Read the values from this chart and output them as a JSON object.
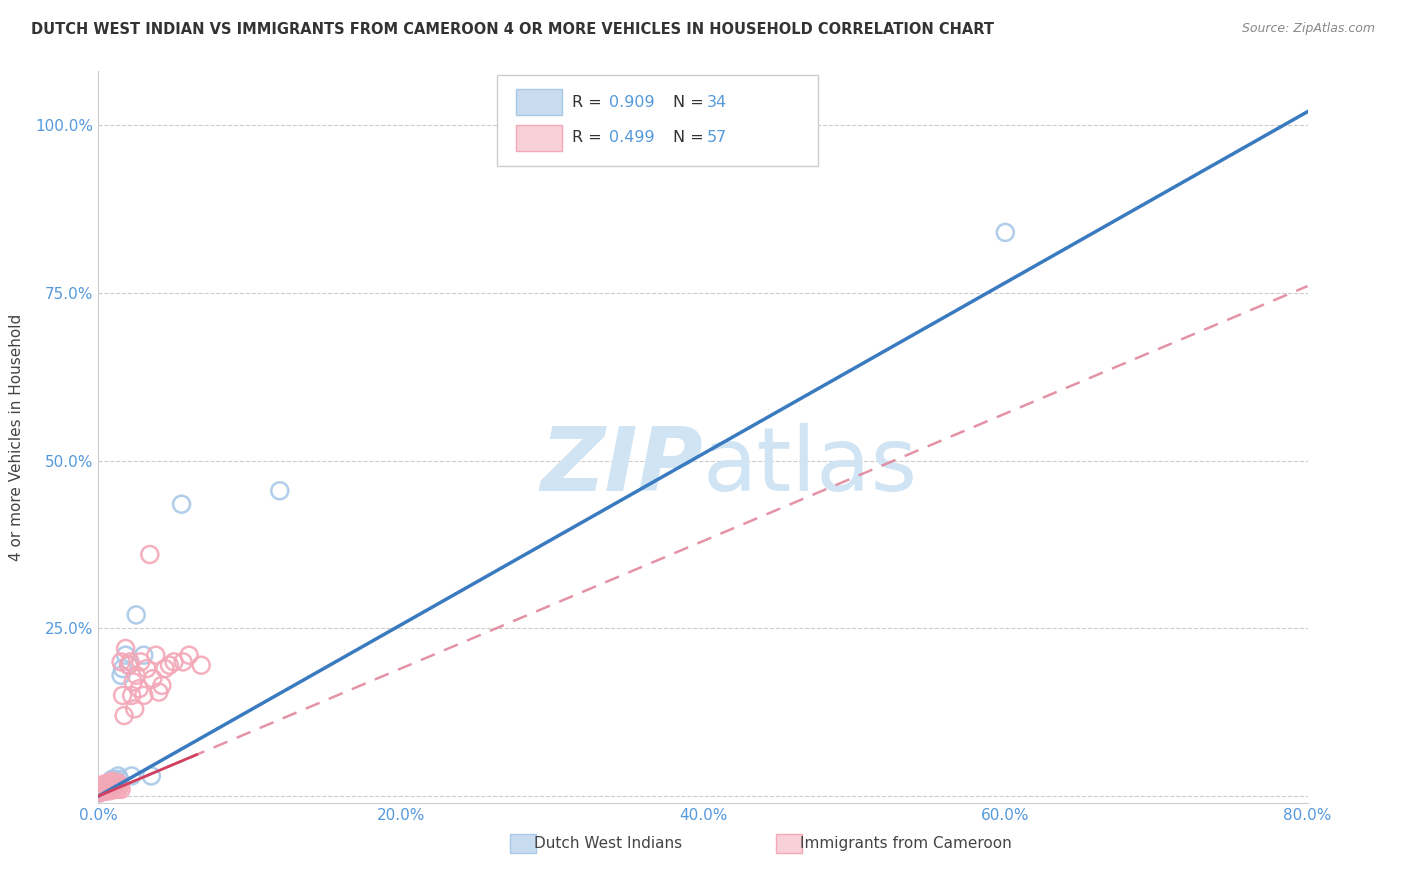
{
  "title": "DUTCH WEST INDIAN VS IMMIGRANTS FROM CAMEROON 4 OR MORE VEHICLES IN HOUSEHOLD CORRELATION CHART",
  "source": "Source: ZipAtlas.com",
  "ylabel": "4 or more Vehicles in Household",
  "xlim": [
    0.0,
    0.8
  ],
  "ylim": [
    -0.01,
    1.08
  ],
  "xticks": [
    0.0,
    0.1,
    0.2,
    0.3,
    0.4,
    0.5,
    0.6,
    0.7,
    0.8
  ],
  "xtick_labels": [
    "0.0%",
    "",
    "20.0%",
    "",
    "40.0%",
    "",
    "60.0%",
    "",
    "80.0%"
  ],
  "yticks": [
    0.0,
    0.25,
    0.5,
    0.75,
    1.0
  ],
  "ytick_labels": [
    "",
    "25.0%",
    "50.0%",
    "75.0%",
    "100.0%"
  ],
  "legend_r1": "0.909",
  "legend_n1": "34",
  "legend_r2": "0.499",
  "legend_n2": "57",
  "blue_scatter_color": "#a8c8e8",
  "blue_line_color": "#3a7abf",
  "pink_scatter_color": "#f4a8b8",
  "pink_line_color": "#d04060",
  "pink_dash_color": "#e08098",
  "axis_label_color": "#5599dd",
  "watermark_color": "#d0e4f4",
  "blue_line_x0": 0.0,
  "blue_line_y0": 0.0,
  "blue_line_x1": 0.8,
  "blue_line_y1": 1.02,
  "pink_line_x0": 0.0,
  "pink_line_y0": 0.0,
  "pink_line_x1": 0.8,
  "pink_line_y1": 0.76,
  "blue_scatter_x": [
    0.001,
    0.002,
    0.002,
    0.003,
    0.003,
    0.004,
    0.004,
    0.005,
    0.005,
    0.006,
    0.006,
    0.007,
    0.007,
    0.008,
    0.008,
    0.009,
    0.009,
    0.01,
    0.01,
    0.011,
    0.012,
    0.013,
    0.014,
    0.015,
    0.016,
    0.018,
    0.02,
    0.022,
    0.025,
    0.03,
    0.035,
    0.055,
    0.12,
    0.6
  ],
  "blue_scatter_y": [
    0.005,
    0.007,
    0.01,
    0.008,
    0.012,
    0.01,
    0.015,
    0.012,
    0.008,
    0.015,
    0.01,
    0.018,
    0.012,
    0.02,
    0.015,
    0.025,
    0.018,
    0.02,
    0.015,
    0.025,
    0.02,
    0.03,
    0.025,
    0.18,
    0.19,
    0.21,
    0.195,
    0.03,
    0.27,
    0.21,
    0.03,
    0.435,
    0.455,
    0.84
  ],
  "pink_scatter_x": [
    0.001,
    0.001,
    0.002,
    0.002,
    0.003,
    0.003,
    0.004,
    0.004,
    0.004,
    0.005,
    0.005,
    0.005,
    0.006,
    0.006,
    0.006,
    0.007,
    0.007,
    0.007,
    0.008,
    0.008,
    0.008,
    0.009,
    0.009,
    0.01,
    0.01,
    0.011,
    0.011,
    0.012,
    0.013,
    0.013,
    0.014,
    0.015,
    0.015,
    0.016,
    0.017,
    0.018,
    0.02,
    0.021,
    0.022,
    0.023,
    0.024,
    0.025,
    0.027,
    0.028,
    0.03,
    0.032,
    0.034,
    0.036,
    0.038,
    0.04,
    0.042,
    0.044,
    0.047,
    0.05,
    0.056,
    0.06,
    0.068
  ],
  "pink_scatter_y": [
    0.005,
    0.01,
    0.007,
    0.012,
    0.009,
    0.015,
    0.007,
    0.012,
    0.018,
    0.01,
    0.015,
    0.008,
    0.012,
    0.018,
    0.008,
    0.015,
    0.01,
    0.02,
    0.012,
    0.018,
    0.008,
    0.015,
    0.022,
    0.01,
    0.018,
    0.012,
    0.02,
    0.015,
    0.02,
    0.01,
    0.015,
    0.01,
    0.2,
    0.15,
    0.12,
    0.22,
    0.195,
    0.2,
    0.15,
    0.17,
    0.13,
    0.18,
    0.16,
    0.2,
    0.15,
    0.19,
    0.36,
    0.175,
    0.21,
    0.155,
    0.165,
    0.19,
    0.195,
    0.2,
    0.2,
    0.21,
    0.195
  ]
}
